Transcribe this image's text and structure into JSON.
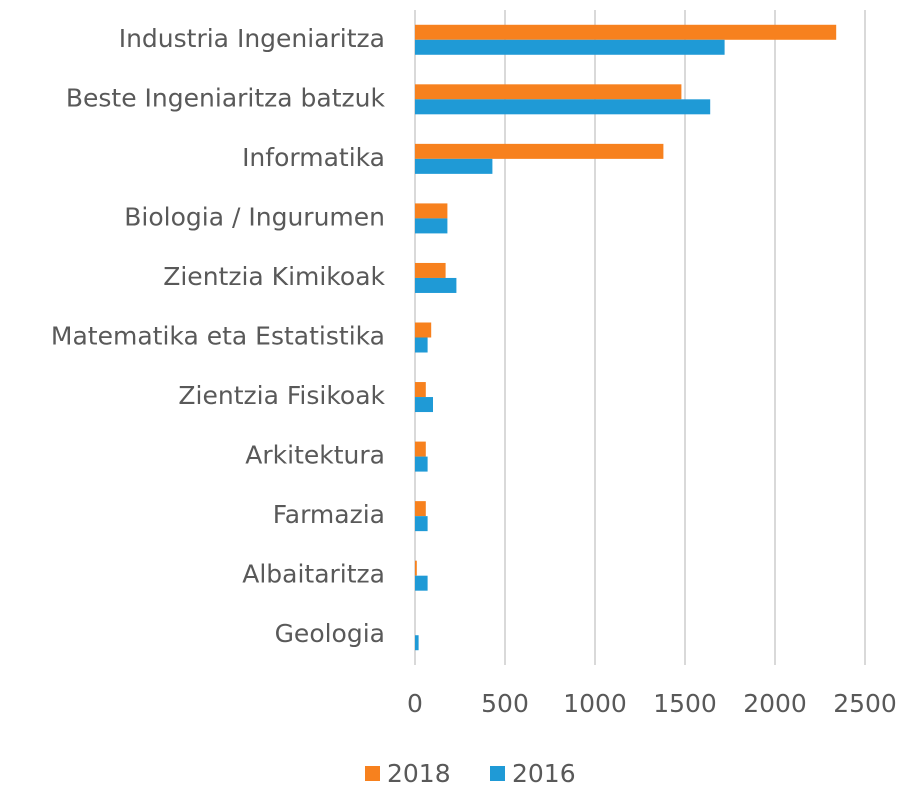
{
  "chart_data": {
    "type": "hbar",
    "categories": [
      "Industria Ingeniaritza",
      "Beste Ingeniaritza batzuk",
      "Informatika",
      "Biologia / Ingurumen",
      "Zientzia Kimikoak",
      "Matematika eta Estatistika",
      "Zientzia Fisikoak",
      "Arkitektura",
      "Farmazia",
      "Albaitaritza",
      "Geologia"
    ],
    "series": [
      {
        "name": "2018",
        "color": "#f7811e",
        "values": [
          2340,
          1480,
          1380,
          180,
          170,
          90,
          60,
          60,
          60,
          10,
          0
        ]
      },
      {
        "name": "2016",
        "color": "#1f9ad6",
        "values": [
          1720,
          1640,
          430,
          180,
          230,
          70,
          100,
          70,
          70,
          70,
          20
        ]
      }
    ],
    "xlim": [
      0,
      2500
    ],
    "xticks": [
      0,
      500,
      1000,
      1500,
      2000,
      2500
    ],
    "grid": true,
    "legend": "bottom"
  }
}
